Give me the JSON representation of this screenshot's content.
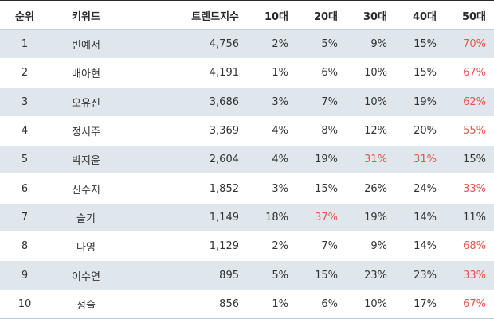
{
  "table": {
    "headers": {
      "rank": "순위",
      "keyword": "키워드",
      "trend_index": "트렌드지수",
      "age10": "10대",
      "age20": "20대",
      "age30": "30대",
      "age40": "40대",
      "age50": "50대"
    },
    "highlight_color": "#e2574c",
    "rows": [
      {
        "rank": "1",
        "keyword": "빈예서",
        "trend_index": "4,756",
        "age10": "2%",
        "age20": "5%",
        "age30": "9%",
        "age40": "15%",
        "age50": "70%",
        "highlight": [
          "age50"
        ]
      },
      {
        "rank": "2",
        "keyword": "배아현",
        "trend_index": "4,191",
        "age10": "1%",
        "age20": "6%",
        "age30": "10%",
        "age40": "15%",
        "age50": "67%",
        "highlight": [
          "age50"
        ]
      },
      {
        "rank": "3",
        "keyword": "오유진",
        "trend_index": "3,686",
        "age10": "3%",
        "age20": "7%",
        "age30": "10%",
        "age40": "19%",
        "age50": "62%",
        "highlight": [
          "age50"
        ]
      },
      {
        "rank": "4",
        "keyword": "정서주",
        "trend_index": "3,369",
        "age10": "4%",
        "age20": "8%",
        "age30": "12%",
        "age40": "20%",
        "age50": "55%",
        "highlight": [
          "age50"
        ]
      },
      {
        "rank": "5",
        "keyword": "박지윤",
        "trend_index": "2,604",
        "age10": "4%",
        "age20": "19%",
        "age30": "31%",
        "age40": "31%",
        "age50": "15%",
        "highlight": [
          "age30",
          "age40"
        ]
      },
      {
        "rank": "6",
        "keyword": "신수지",
        "trend_index": "1,852",
        "age10": "3%",
        "age20": "15%",
        "age30": "26%",
        "age40": "24%",
        "age50": "33%",
        "highlight": [
          "age50"
        ]
      },
      {
        "rank": "7",
        "keyword": "슬기",
        "trend_index": "1,149",
        "age10": "18%",
        "age20": "37%",
        "age30": "19%",
        "age40": "14%",
        "age50": "11%",
        "highlight": [
          "age20"
        ]
      },
      {
        "rank": "8",
        "keyword": "나영",
        "trend_index": "1,129",
        "age10": "2%",
        "age20": "7%",
        "age30": "9%",
        "age40": "14%",
        "age50": "68%",
        "highlight": [
          "age50"
        ]
      },
      {
        "rank": "9",
        "keyword": "이수연",
        "trend_index": "895",
        "age10": "5%",
        "age20": "15%",
        "age30": "23%",
        "age40": "23%",
        "age50": "33%",
        "highlight": [
          "age50"
        ]
      },
      {
        "rank": "10",
        "keyword": "정슬",
        "trend_index": "856",
        "age10": "1%",
        "age20": "6%",
        "age30": "10%",
        "age40": "17%",
        "age50": "67%",
        "highlight": [
          "age50"
        ]
      }
    ]
  }
}
